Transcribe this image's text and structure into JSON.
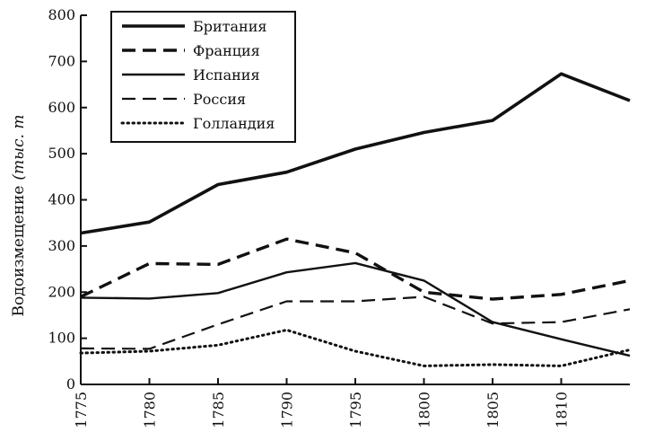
{
  "chart_data": {
    "type": "line",
    "ylabel_main": "Водоизмещение",
    "ylabel_unit": "(тыс. т",
    "x": [
      1775,
      1780,
      1785,
      1790,
      1795,
      1800,
      1805,
      1810,
      1815
    ],
    "xticks": [
      "1775",
      "1780",
      "1785",
      "1790",
      "1795",
      "1800",
      "1805",
      "1810"
    ],
    "ylim": [
      0,
      800
    ],
    "yticks": [
      "0",
      "100",
      "200",
      "300",
      "400",
      "500",
      "600",
      "700",
      "800"
    ],
    "legend_position": "top-left",
    "grid": false,
    "series": [
      {
        "name": "Британия",
        "style": "solid-thick",
        "values": [
          328,
          352,
          433,
          460,
          510,
          546,
          572,
          673,
          615
        ]
      },
      {
        "name": "Франция",
        "style": "dashed-thick",
        "values": [
          190,
          262,
          260,
          315,
          285,
          200,
          185,
          195,
          225
        ]
      },
      {
        "name": "Испания",
        "style": "solid-thin",
        "values": [
          188,
          186,
          198,
          243,
          263,
          225,
          135,
          98,
          62
        ]
      },
      {
        "name": "Россия",
        "style": "dashed-thin",
        "values": [
          78,
          77,
          130,
          180,
          180,
          190,
          132,
          135,
          163
        ]
      },
      {
        "name": "Голландия",
        "style": "dotted",
        "values": [
          68,
          72,
          85,
          118,
          72,
          40,
          43,
          40,
          75
        ]
      }
    ]
  }
}
